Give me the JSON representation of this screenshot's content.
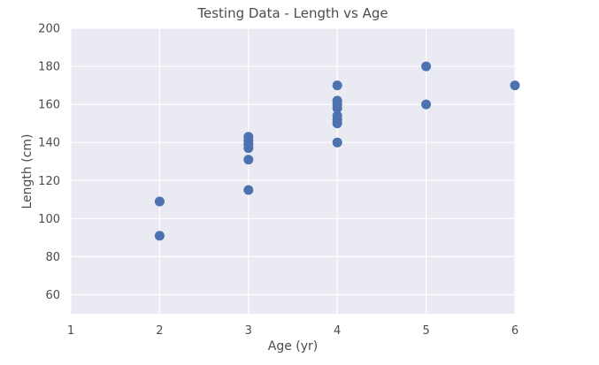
{
  "chart_data": {
    "type": "scatter",
    "title": "Testing Data - Length vs Age",
    "xlabel": "Age (yr)",
    "ylabel": "Length (cm)",
    "xlim": [
      1,
      6
    ],
    "ylim": [
      50,
      200
    ],
    "x_ticks": [
      1,
      2,
      3,
      4,
      5,
      6
    ],
    "y_ticks": [
      60,
      80,
      100,
      120,
      140,
      160,
      180,
      200
    ],
    "grid": true,
    "colors": {
      "background": "#eaeaf2",
      "grid": "#ffffff",
      "marker": "#4c72b0"
    },
    "series": [
      {
        "points": [
          {
            "x": 2,
            "y": 109
          },
          {
            "x": 2,
            "y": 91
          },
          {
            "x": 3,
            "y": 143
          },
          {
            "x": 3,
            "y": 141
          },
          {
            "x": 3,
            "y": 139
          },
          {
            "x": 3,
            "y": 137
          },
          {
            "x": 3,
            "y": 131
          },
          {
            "x": 3,
            "y": 115
          },
          {
            "x": 4,
            "y": 170
          },
          {
            "x": 4,
            "y": 162
          },
          {
            "x": 4,
            "y": 160
          },
          {
            "x": 4,
            "y": 158
          },
          {
            "x": 4,
            "y": 154
          },
          {
            "x": 4,
            "y": 152
          },
          {
            "x": 4,
            "y": 150
          },
          {
            "x": 4,
            "y": 140
          },
          {
            "x": 5,
            "y": 180
          },
          {
            "x": 5,
            "y": 160
          },
          {
            "x": 6,
            "y": 170
          }
        ]
      }
    ]
  }
}
